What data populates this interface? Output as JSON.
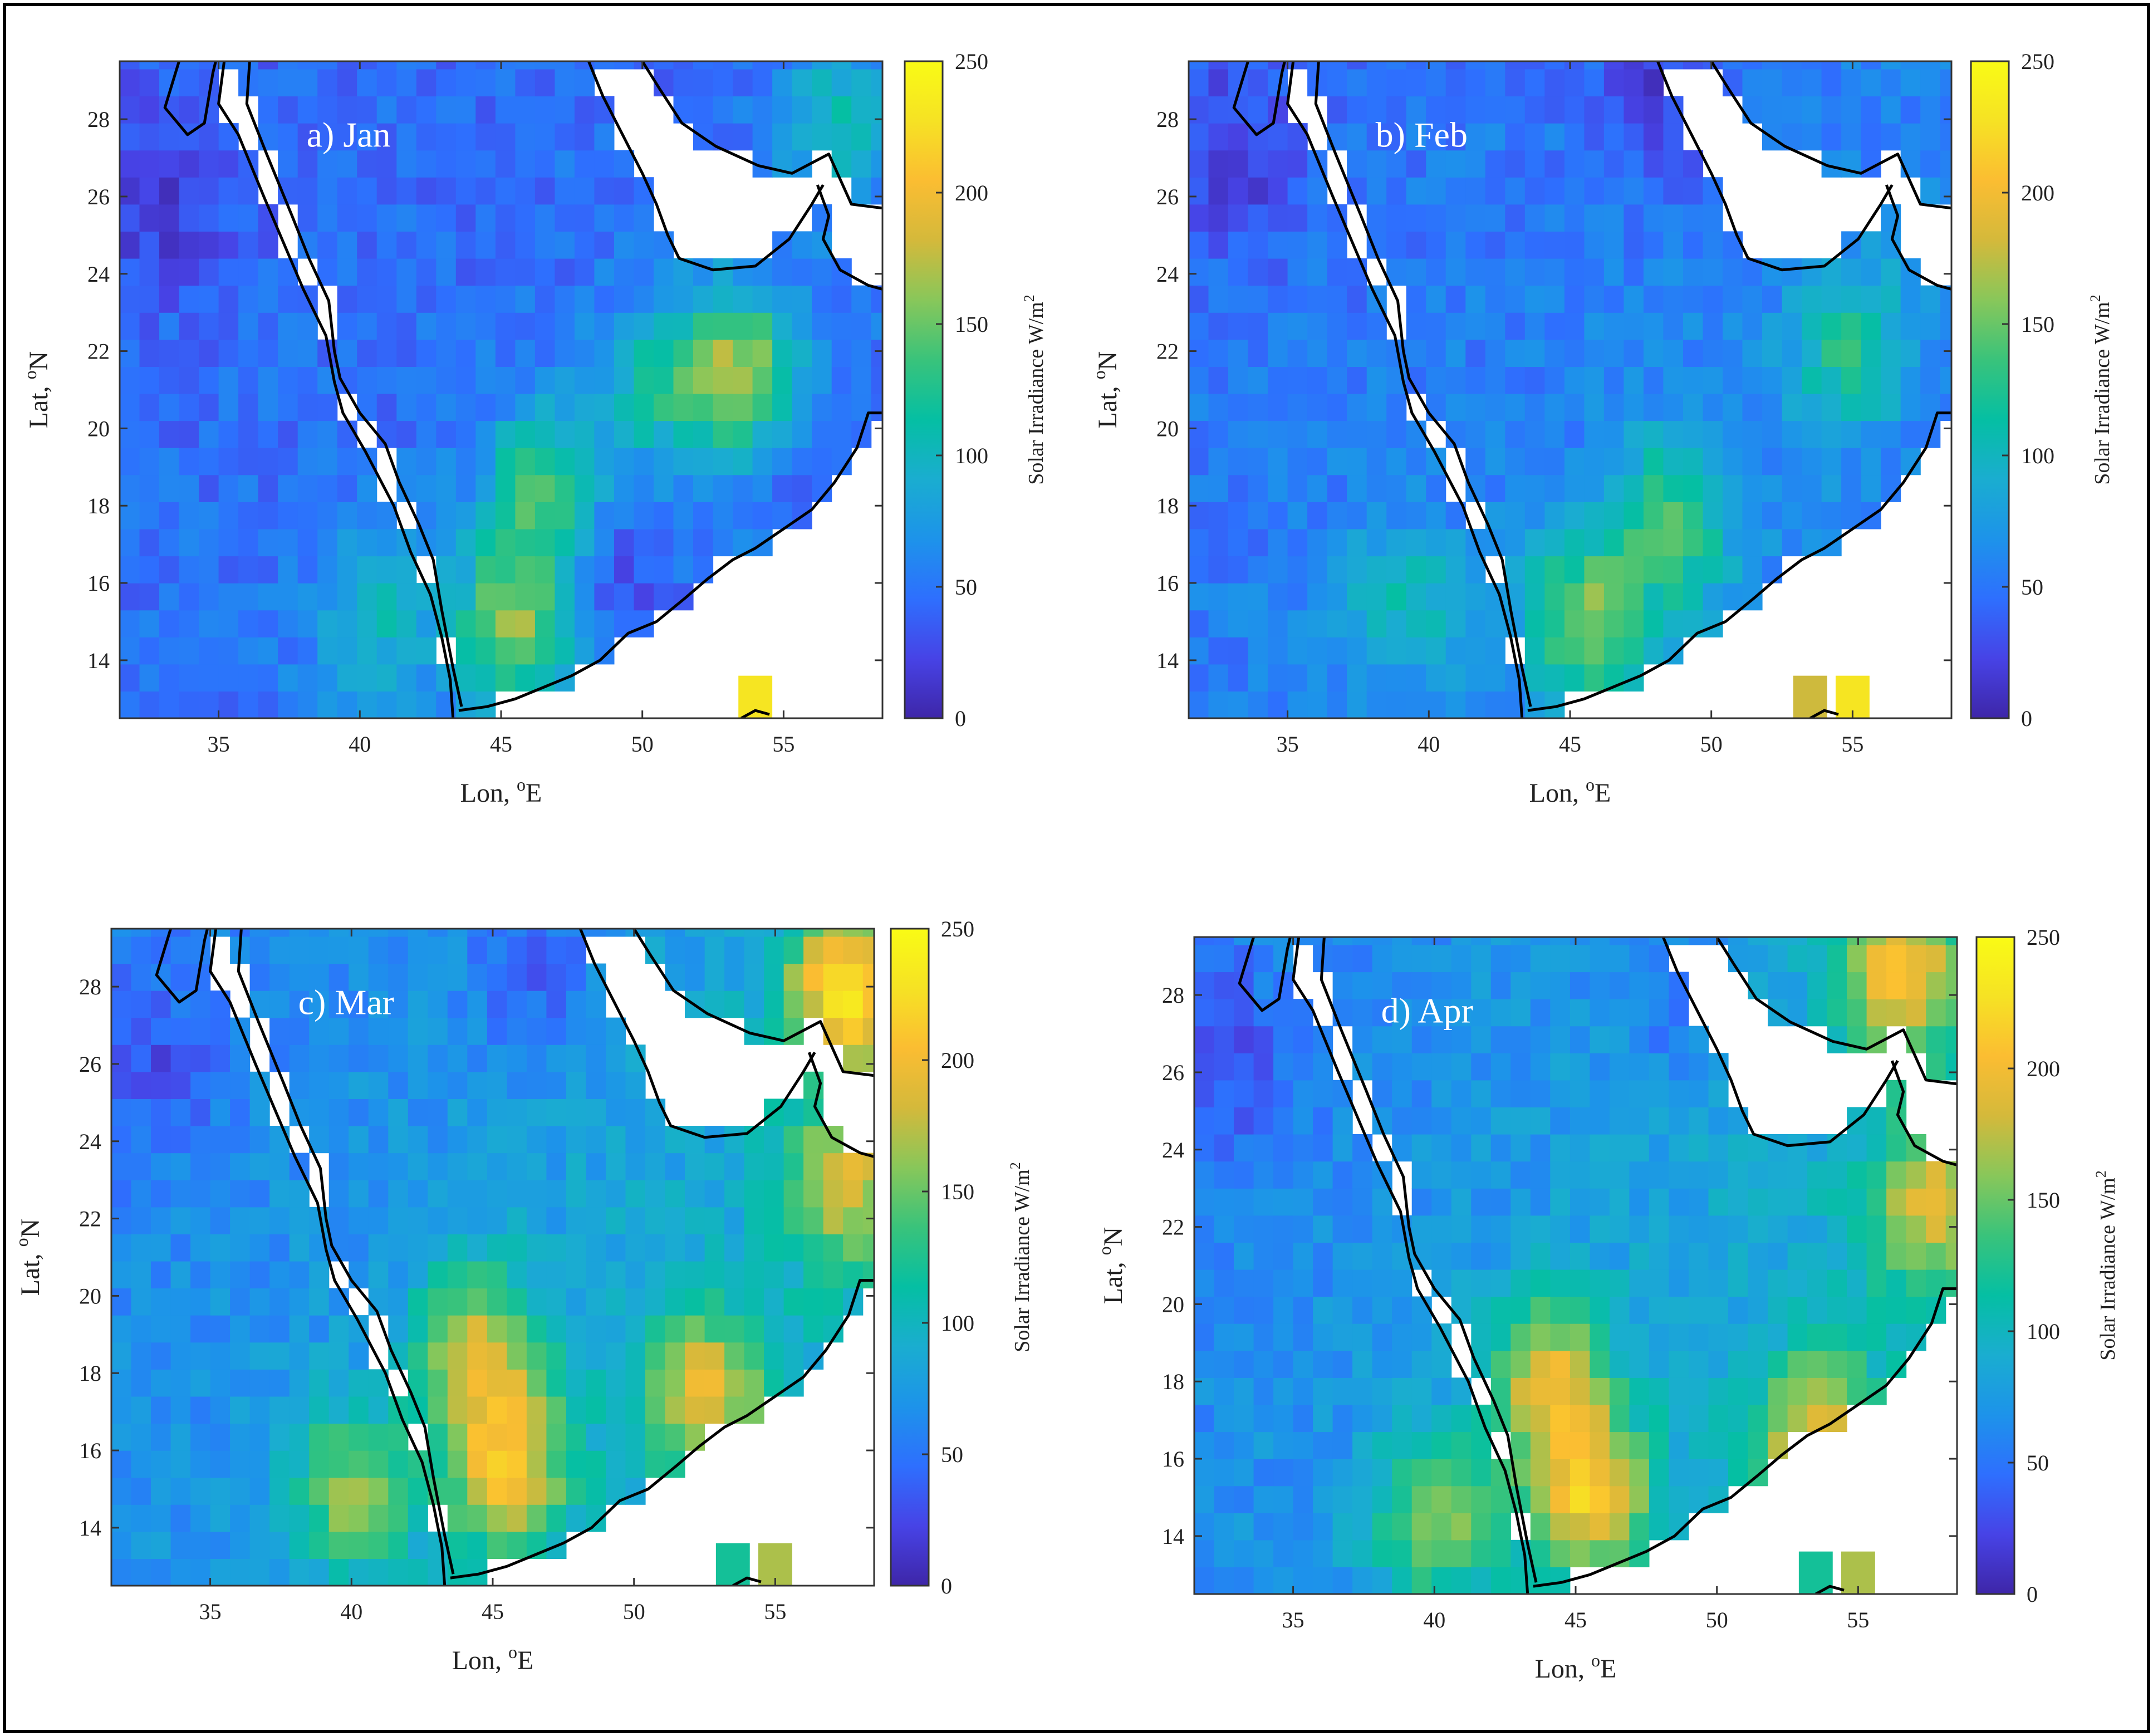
{
  "figure": {
    "colorbar_label_prefix": "Solar Irradiance W/m",
    "colorbar_label_sup": "2",
    "colorbar_ticks": [
      0,
      50,
      100,
      150,
      200,
      250
    ],
    "xlabel_prefix": "Lon, ",
    "xlabel_sup": "o",
    "xlabel_suffix": "E",
    "ylabel_prefix": "Lat, ",
    "ylabel_sup": "o",
    "ylabel_suffix": "N",
    "colormap": [
      "#3e26a8",
      "#4743e6",
      "#2e6ffe",
      "#1d93ea",
      "#1aadd0",
      "#05bfa3",
      "#39c37b",
      "#88c75a",
      "#d4b93b",
      "#fbbd32",
      "#f6e224",
      "#f9fb15"
    ]
  },
  "chart_data": [
    {
      "type": "heatmap",
      "title": "a) Jan",
      "xlabel": "Lon, oE",
      "ylabel": "Lat, oN",
      "xlim": [
        31.5,
        58.5
      ],
      "ylim": [
        12.5,
        29.5
      ],
      "xticks": [
        35,
        40,
        45,
        50,
        55
      ],
      "yticks": [
        14,
        16,
        18,
        20,
        22,
        24,
        26,
        28
      ],
      "clim": [
        0,
        250
      ],
      "base": 40,
      "base_slope_lon": 0.3,
      "base_slope_lat": 0.5,
      "hotspots": [
        {
          "lon": 45.5,
          "lat": 15.0,
          "value": 150
        },
        {
          "lon": 46.5,
          "lat": 18.5,
          "value": 120
        },
        {
          "lon": 53.5,
          "lat": 21.5,
          "value": 155
        },
        {
          "lon": 50.5,
          "lat": 21.0,
          "value": 95
        },
        {
          "lon": 40.5,
          "lat": 15.0,
          "value": 90
        },
        {
          "lon": 57.0,
          "lat": 28.0,
          "value": 100
        }
      ],
      "lowspots": [
        {
          "lon": 33.0,
          "lat": 26.0,
          "value": 12
        },
        {
          "lon": 49.0,
          "lat": 16.0,
          "value": 15
        },
        {
          "lon": 56.5,
          "lat": 19.5,
          "value": 20
        }
      ],
      "island_cells": [
        {
          "lon": 54.0,
          "lat": 13.0,
          "value": 230
        }
      ]
    },
    {
      "type": "heatmap",
      "title": "b) Feb",
      "xlabel": "Lon, oE",
      "ylabel": "Lat, oN",
      "xlim": [
        31.5,
        58.5
      ],
      "ylim": [
        12.5,
        29.5
      ],
      "xticks": [
        35,
        40,
        45,
        50,
        55
      ],
      "yticks": [
        14,
        16,
        18,
        20,
        22,
        24,
        26,
        28
      ],
      "clim": [
        0,
        250
      ],
      "base": 45,
      "base_slope_lon": 0.5,
      "base_slope_lat": 0.6,
      "hotspots": [
        {
          "lon": 45.5,
          "lat": 15.0,
          "value": 140
        },
        {
          "lon": 48.5,
          "lat": 17.5,
          "value": 125
        },
        {
          "lon": 55.0,
          "lat": 22.0,
          "value": 110
        },
        {
          "lon": 39.0,
          "lat": 15.5,
          "value": 95
        }
      ],
      "lowspots": [
        {
          "lon": 33.0,
          "lat": 27.0,
          "value": 15
        },
        {
          "lon": 48.0,
          "lat": 28.5,
          "value": 10
        },
        {
          "lon": 57.0,
          "lat": 20.0,
          "value": 35
        }
      ],
      "island_cells": [
        {
          "lon": 53.5,
          "lat": 13.0,
          "value": 180
        },
        {
          "lon": 55.0,
          "lat": 13.0,
          "value": 230
        }
      ]
    },
    {
      "type": "heatmap",
      "title": "c) Mar",
      "xlabel": "Lon, oE",
      "ylabel": "Lat, oN",
      "xlim": [
        31.5,
        58.5
      ],
      "ylim": [
        12.5,
        29.5
      ],
      "xticks": [
        35,
        40,
        45,
        50,
        55
      ],
      "yticks": [
        14,
        16,
        18,
        20,
        22,
        24,
        26,
        28
      ],
      "clim": [
        0,
        250
      ],
      "base": 55,
      "base_slope_lon": 1.2,
      "base_slope_lat": 0.8,
      "hotspots": [
        {
          "lon": 45.5,
          "lat": 15.5,
          "value": 170
        },
        {
          "lon": 44.5,
          "lat": 18.5,
          "value": 160
        },
        {
          "lon": 52.5,
          "lat": 17.5,
          "value": 160
        },
        {
          "lon": 57.5,
          "lat": 28.0,
          "value": 200
        },
        {
          "lon": 57.5,
          "lat": 23.0,
          "value": 150
        },
        {
          "lon": 40.0,
          "lat": 15.0,
          "value": 140
        }
      ],
      "lowspots": [
        {
          "lon": 33.0,
          "lat": 26.0,
          "value": 25
        },
        {
          "lon": 46.5,
          "lat": 28.5,
          "value": 20
        }
      ],
      "island_cells": [
        {
          "lon": 53.5,
          "lat": 13.0,
          "value": 120
        },
        {
          "lon": 55.0,
          "lat": 13.0,
          "value": 170
        }
      ]
    },
    {
      "type": "heatmap",
      "title": "d) Apr",
      "xlabel": "Lon, oE",
      "ylabel": "Lat, oN",
      "xlim": [
        31.5,
        58.5
      ],
      "ylim": [
        12.5,
        29.5
      ],
      "xticks": [
        35,
        40,
        45,
        50,
        55
      ],
      "yticks": [
        14,
        16,
        18,
        20,
        22,
        24,
        26,
        28
      ],
      "clim": [
        0,
        250
      ],
      "base": 55,
      "base_slope_lon": 1.3,
      "base_slope_lat": 0.7,
      "hotspots": [
        {
          "lon": 45.5,
          "lat": 15.0,
          "value": 175
        },
        {
          "lon": 44.0,
          "lat": 18.0,
          "value": 165
        },
        {
          "lon": 53.5,
          "lat": 16.5,
          "value": 160
        },
        {
          "lon": 56.5,
          "lat": 28.5,
          "value": 175
        },
        {
          "lon": 57.5,
          "lat": 22.5,
          "value": 150
        },
        {
          "lon": 40.0,
          "lat": 14.5,
          "value": 140
        }
      ],
      "lowspots": [
        {
          "lon": 33.0,
          "lat": 26.0,
          "value": 25
        },
        {
          "lon": 48.5,
          "lat": 28.0,
          "value": 25
        }
      ],
      "island_cells": [
        {
          "lon": 53.5,
          "lat": 13.0,
          "value": 120
        },
        {
          "lon": 55.0,
          "lat": 13.0,
          "value": 170
        }
      ]
    }
  ]
}
